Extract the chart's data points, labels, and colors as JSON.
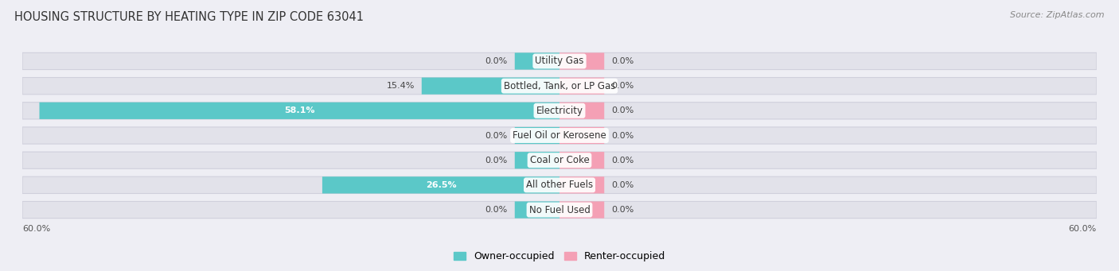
{
  "title": "HOUSING STRUCTURE BY HEATING TYPE IN ZIP CODE 63041",
  "source": "Source: ZipAtlas.com",
  "categories": [
    "Utility Gas",
    "Bottled, Tank, or LP Gas",
    "Electricity",
    "Fuel Oil or Kerosene",
    "Coal or Coke",
    "All other Fuels",
    "No Fuel Used"
  ],
  "owner_values": [
    0.0,
    15.4,
    58.1,
    0.0,
    0.0,
    26.5,
    0.0
  ],
  "renter_values": [
    0.0,
    0.0,
    0.0,
    0.0,
    0.0,
    0.0,
    0.0
  ],
  "owner_color": "#5bc8c8",
  "renter_color": "#f4a0b5",
  "axis_max": 60.0,
  "min_bar_size": 5.0,
  "background_color": "#eeeef4",
  "bar_background": "#e2e2ea",
  "title_fontsize": 10.5,
  "label_fontsize": 8.5,
  "source_fontsize": 8,
  "value_fontsize": 8,
  "legend_fontsize": 9
}
